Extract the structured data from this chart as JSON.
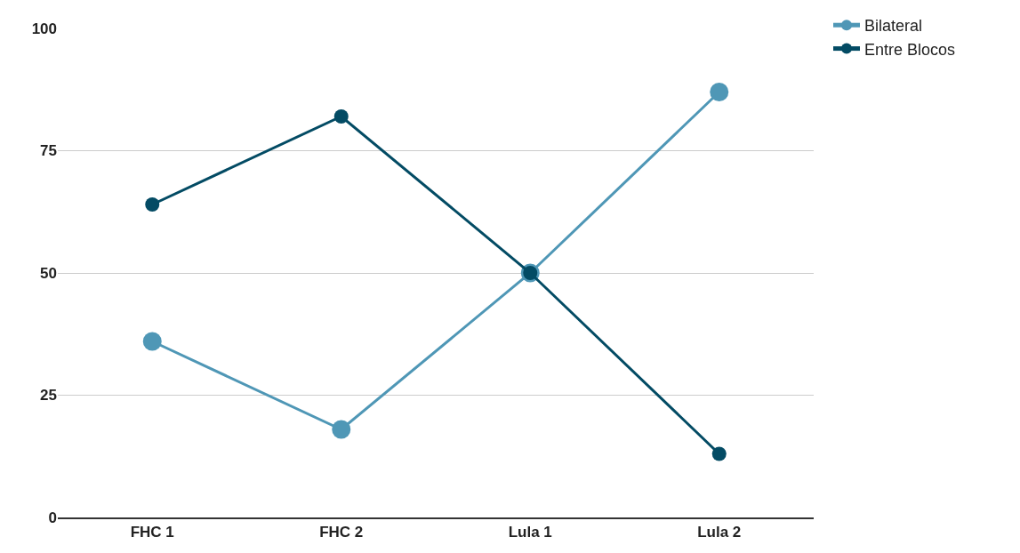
{
  "chart_data": {
    "type": "line",
    "categories": [
      "FHC 1",
      "FHC 2",
      "Lula 1",
      "Lula 2"
    ],
    "series": [
      {
        "name": "Bilateral",
        "color": "#4f97b6",
        "values": [
          36,
          18,
          50,
          87
        ]
      },
      {
        "name": "Entre Blocos",
        "color": "#034b64",
        "values": [
          64,
          82,
          50,
          13
        ]
      }
    ],
    "ylim": [
      0,
      100
    ],
    "yticks": [
      0,
      25,
      50,
      75,
      100
    ],
    "grid": "y",
    "legend": "top right",
    "marker": "circle"
  }
}
